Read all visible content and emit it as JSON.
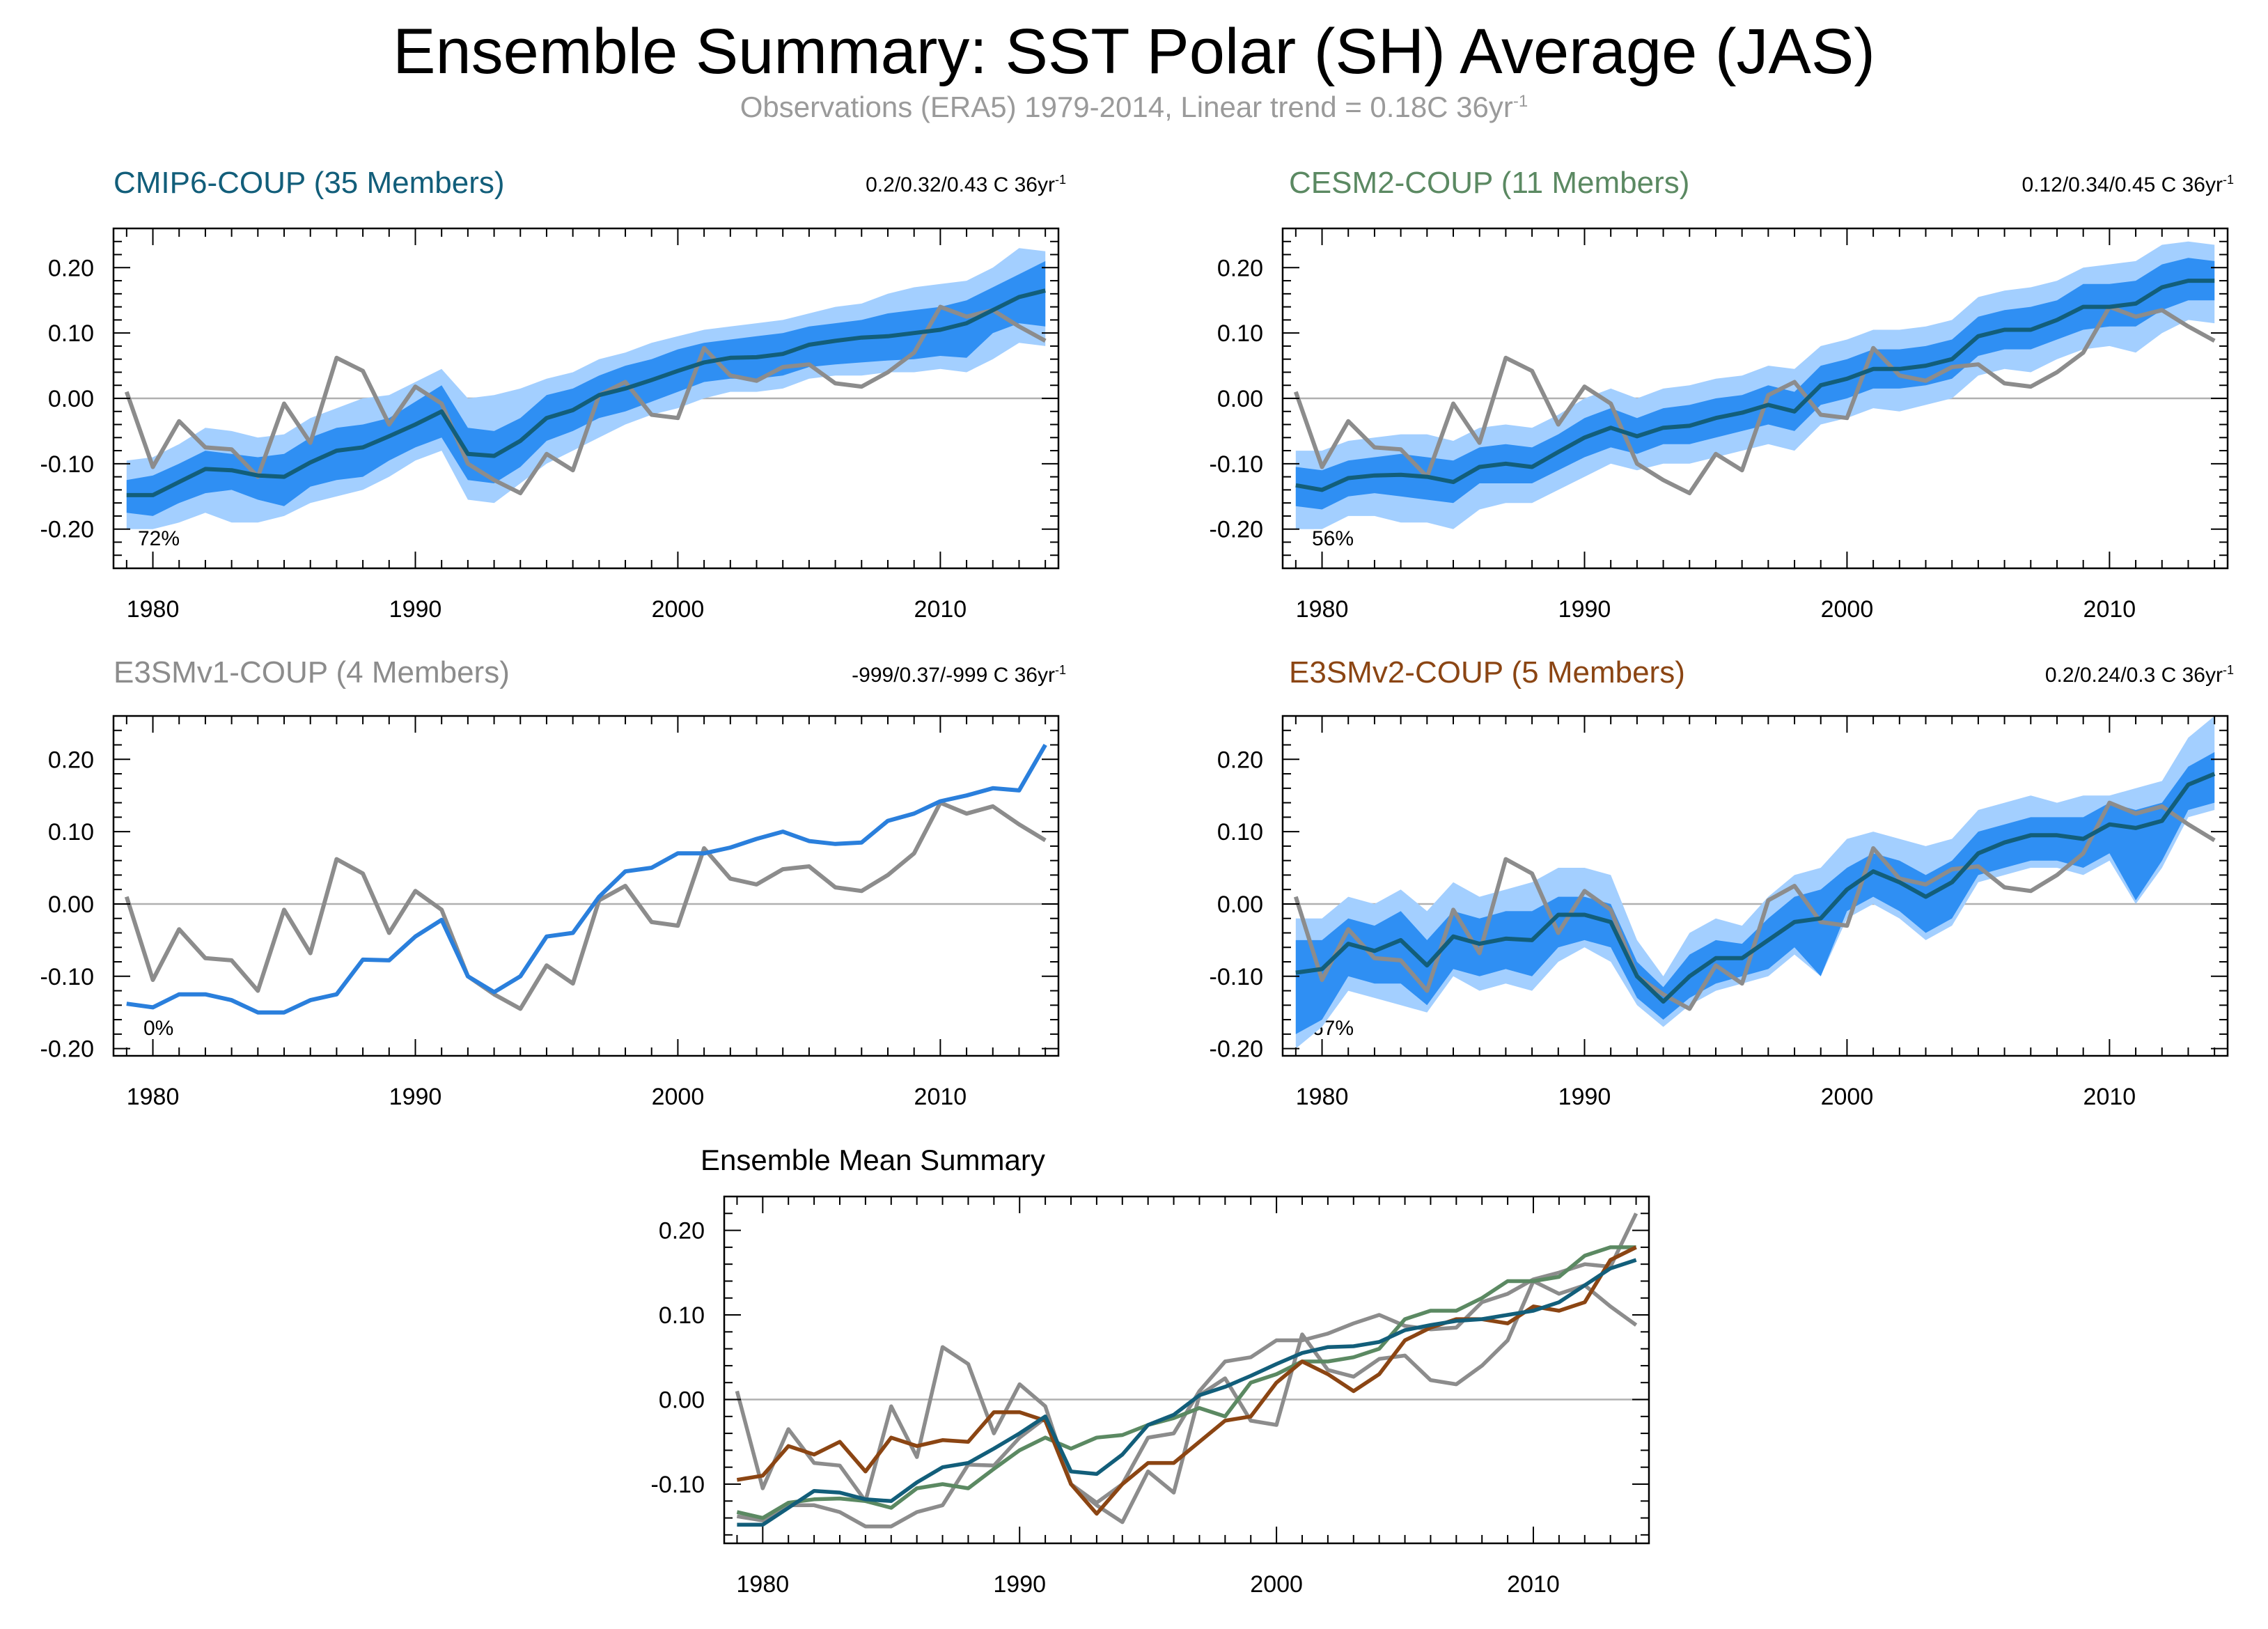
{
  "title": "Ensemble Summary: SST Polar (SH) Average (JAS)",
  "subtitle": {
    "text": "Observations (ERA5) 1979-2014, Linear trend = 0.18C 36yr",
    "sup": "-1"
  },
  "colors": {
    "obs": "#8c8c8c",
    "band_outer": "#a3cfff",
    "band_inner": "#2f8ff3",
    "mean_line": "#2a7fdc",
    "cmip6": "#125e7a",
    "cesm2": "#5b8962",
    "e3smv1": "#8c8c8c",
    "e3smv2": "#8b4513",
    "zero_line": "#b0b0b0"
  },
  "chart_data": [
    {
      "id": "cmip6",
      "type": "area",
      "title": "CMIP6-COUP (35 Members)",
      "trend": "0.2/0.32/0.43 C 36yr",
      "trend_sup": "-1",
      "percent": "72%",
      "x_start": 1979,
      "xticks": [
        "1980",
        "1990",
        "2000",
        "2010"
      ],
      "yticks": [
        "0.20",
        "0.10",
        "0.00",
        "-0.10",
        "-0.20"
      ],
      "ylim": [
        -0.26,
        0.26
      ],
      "xlim": [
        1978.5,
        2014.5
      ],
      "obs": [
        0.01,
        -0.105,
        -0.035,
        -0.075,
        -0.078,
        -0.12,
        -0.008,
        -0.068,
        0.062,
        0.042,
        -0.04,
        0.018,
        -0.008,
        -0.1,
        -0.125,
        -0.145,
        -0.085,
        -0.11,
        0.005,
        0.025,
        -0.025,
        -0.03,
        0.077,
        0.035,
        0.027,
        0.048,
        0.052,
        0.023,
        0.018,
        0.04,
        0.07,
        0.14,
        0.125,
        0.135,
        0.11,
        0.088
      ],
      "mean": [
        -0.148,
        -0.148,
        -0.128,
        -0.108,
        -0.11,
        -0.118,
        -0.12,
        -0.098,
        -0.08,
        -0.075,
        -0.058,
        -0.04,
        -0.02,
        -0.085,
        -0.088,
        -0.065,
        -0.03,
        -0.018,
        0.005,
        0.015,
        0.028,
        0.042,
        0.055,
        0.062,
        0.063,
        0.068,
        0.082,
        0.088,
        0.093,
        0.095,
        0.1,
        0.105,
        0.115,
        0.135,
        0.155,
        0.165
      ],
      "inner_lo": [
        -0.175,
        -0.18,
        -0.16,
        -0.145,
        -0.14,
        -0.155,
        -0.165,
        -0.135,
        -0.125,
        -0.12,
        -0.095,
        -0.075,
        -0.06,
        -0.125,
        -0.13,
        -0.105,
        -0.065,
        -0.05,
        -0.03,
        -0.02,
        -0.005,
        0.01,
        0.025,
        0.03,
        0.03,
        0.035,
        0.048,
        0.052,
        0.055,
        0.058,
        0.06,
        0.065,
        0.062,
        0.1,
        0.115,
        0.11
      ],
      "inner_hi": [
        -0.125,
        -0.118,
        -0.1,
        -0.08,
        -0.085,
        -0.09,
        -0.085,
        -0.06,
        -0.045,
        -0.04,
        -0.03,
        -0.005,
        0.02,
        -0.045,
        -0.05,
        -0.03,
        0.005,
        0.015,
        0.035,
        0.05,
        0.06,
        0.075,
        0.085,
        0.09,
        0.095,
        0.1,
        0.11,
        0.115,
        0.12,
        0.13,
        0.135,
        0.14,
        0.15,
        0.17,
        0.19,
        0.21
      ],
      "outer_lo": [
        -0.2,
        -0.2,
        -0.19,
        -0.175,
        -0.19,
        -0.19,
        -0.18,
        -0.16,
        -0.15,
        -0.14,
        -0.12,
        -0.095,
        -0.08,
        -0.155,
        -0.16,
        -0.13,
        -0.1,
        -0.08,
        -0.06,
        -0.04,
        -0.025,
        -0.015,
        0.0,
        0.01,
        0.01,
        0.015,
        0.03,
        0.035,
        0.035,
        0.04,
        0.04,
        0.045,
        0.04,
        0.06,
        0.085,
        0.08
      ],
      "outer_hi": [
        -0.095,
        -0.09,
        -0.07,
        -0.045,
        -0.05,
        -0.06,
        -0.055,
        -0.03,
        -0.015,
        0.0,
        0.005,
        0.025,
        0.045,
        0.0,
        0.005,
        0.015,
        0.03,
        0.04,
        0.06,
        0.07,
        0.085,
        0.095,
        0.105,
        0.11,
        0.115,
        0.12,
        0.13,
        0.14,
        0.145,
        0.16,
        0.17,
        0.175,
        0.18,
        0.2,
        0.23,
        0.225
      ],
      "mean_color_key": "cmip6",
      "title_color_key": "cmip6"
    },
    {
      "id": "cesm2",
      "type": "area",
      "title": "CESM2-COUP (11 Members)",
      "trend": "0.12/0.34/0.45 C 36yr",
      "trend_sup": "-1",
      "percent": "56%",
      "x_start": 1979,
      "xticks": [
        "1980",
        "1990",
        "2000",
        "2010"
      ],
      "yticks": [
        "0.20",
        "0.10",
        "0.00",
        "-0.10",
        "-0.20"
      ],
      "ylim": [
        -0.26,
        0.26
      ],
      "xlim": [
        1978.5,
        2014.5
      ],
      "obs": [
        0.01,
        -0.105,
        -0.035,
        -0.075,
        -0.078,
        -0.12,
        -0.008,
        -0.068,
        0.062,
        0.042,
        -0.04,
        0.018,
        -0.008,
        -0.1,
        -0.125,
        -0.145,
        -0.085,
        -0.11,
        0.005,
        0.025,
        -0.025,
        -0.03,
        0.077,
        0.035,
        0.027,
        0.048,
        0.052,
        0.023,
        0.018,
        0.04,
        0.07,
        0.14,
        0.125,
        0.135,
        0.11,
        0.088
      ],
      "mean": [
        -0.133,
        -0.14,
        -0.122,
        -0.118,
        -0.117,
        -0.12,
        -0.128,
        -0.105,
        -0.1,
        -0.105,
        -0.082,
        -0.06,
        -0.045,
        -0.058,
        -0.045,
        -0.042,
        -0.03,
        -0.022,
        -0.01,
        -0.02,
        0.02,
        0.03,
        0.045,
        0.045,
        0.05,
        0.06,
        0.095,
        0.105,
        0.105,
        0.12,
        0.14,
        0.14,
        0.145,
        0.17,
        0.18,
        0.18
      ],
      "inner_lo": [
        -0.165,
        -0.17,
        -0.15,
        -0.145,
        -0.15,
        -0.155,
        -0.16,
        -0.13,
        -0.13,
        -0.13,
        -0.11,
        -0.09,
        -0.075,
        -0.085,
        -0.07,
        -0.07,
        -0.06,
        -0.05,
        -0.04,
        -0.05,
        -0.01,
        0.0,
        0.015,
        0.015,
        0.02,
        0.03,
        0.065,
        0.075,
        0.075,
        0.09,
        0.105,
        0.11,
        0.11,
        0.135,
        0.15,
        0.15
      ],
      "inner_hi": [
        -0.105,
        -0.11,
        -0.095,
        -0.09,
        -0.085,
        -0.09,
        -0.095,
        -0.075,
        -0.07,
        -0.075,
        -0.055,
        -0.03,
        -0.015,
        -0.03,
        -0.015,
        -0.01,
        0.0,
        0.005,
        0.02,
        0.01,
        0.05,
        0.06,
        0.075,
        0.075,
        0.08,
        0.09,
        0.125,
        0.135,
        0.14,
        0.15,
        0.175,
        0.175,
        0.18,
        0.205,
        0.215,
        0.21
      ],
      "outer_lo": [
        -0.2,
        -0.2,
        -0.18,
        -0.18,
        -0.19,
        -0.19,
        -0.2,
        -0.17,
        -0.16,
        -0.16,
        -0.14,
        -0.12,
        -0.1,
        -0.11,
        -0.1,
        -0.1,
        -0.09,
        -0.08,
        -0.07,
        -0.08,
        -0.04,
        -0.03,
        -0.015,
        -0.02,
        -0.01,
        0.0,
        0.035,
        0.045,
        0.04,
        0.06,
        0.075,
        0.08,
        0.07,
        0.1,
        0.12,
        0.115
      ],
      "outer_hi": [
        -0.08,
        -0.08,
        -0.065,
        -0.06,
        -0.055,
        -0.055,
        -0.065,
        -0.045,
        -0.04,
        -0.045,
        -0.025,
        0.0,
        0.015,
        0.0,
        0.015,
        0.02,
        0.03,
        0.035,
        0.05,
        0.045,
        0.08,
        0.09,
        0.105,
        0.105,
        0.11,
        0.12,
        0.155,
        0.165,
        0.17,
        0.18,
        0.2,
        0.205,
        0.21,
        0.235,
        0.24,
        0.235
      ],
      "mean_color_key": "cmip6",
      "title_color_key": "cesm2"
    },
    {
      "id": "e3smv1",
      "type": "line",
      "title": "E3SMv1-COUP (4 Members)",
      "trend": "-999/0.37/-999 C 36yr",
      "trend_sup": "-1",
      "percent": "0%",
      "x_start": 1979,
      "xticks": [
        "1980",
        "1990",
        "2000",
        "2010"
      ],
      "yticks": [
        "0.20",
        "0.10",
        "0.00",
        "-0.10",
        "-0.20"
      ],
      "ylim": [
        -0.21,
        0.26
      ],
      "xlim": [
        1978.5,
        2014.5
      ],
      "obs": [
        0.01,
        -0.105,
        -0.035,
        -0.075,
        -0.078,
        -0.12,
        -0.008,
        -0.068,
        0.062,
        0.042,
        -0.04,
        0.018,
        -0.008,
        -0.1,
        -0.125,
        -0.145,
        -0.085,
        -0.11,
        0.005,
        0.025,
        -0.025,
        -0.03,
        0.077,
        0.035,
        0.027,
        0.048,
        0.052,
        0.023,
        0.018,
        0.04,
        0.07,
        0.14,
        0.125,
        0.135,
        0.11,
        0.088
      ],
      "mean": [
        -0.138,
        -0.143,
        -0.125,
        -0.125,
        -0.133,
        -0.15,
        -0.15,
        -0.133,
        -0.125,
        -0.077,
        -0.078,
        -0.045,
        -0.022,
        -0.1,
        -0.122,
        -0.1,
        -0.045,
        -0.04,
        0.01,
        0.045,
        0.05,
        0.07,
        0.07,
        0.078,
        0.09,
        0.1,
        0.087,
        0.083,
        0.085,
        0.115,
        0.125,
        0.142,
        0.15,
        0.16,
        0.157,
        0.22
      ],
      "mean_color_key": "mean_line",
      "title_color_key": "e3smv1"
    },
    {
      "id": "e3smv2",
      "type": "area",
      "title": "E3SMv2-COUP (5 Members)",
      "trend": "0.2/0.24/0.3 C 36yr",
      "trend_sup": "-1",
      "percent": "67%",
      "x_start": 1979,
      "xticks": [
        "1980",
        "1990",
        "2000",
        "2010"
      ],
      "yticks": [
        "0.20",
        "0.10",
        "0.00",
        "-0.10",
        "-0.20"
      ],
      "ylim": [
        -0.21,
        0.26
      ],
      "xlim": [
        1978.5,
        2014.5
      ],
      "obs": [
        0.01,
        -0.105,
        -0.035,
        -0.075,
        -0.078,
        -0.12,
        -0.008,
        -0.068,
        0.062,
        0.042,
        -0.04,
        0.018,
        -0.008,
        -0.1,
        -0.125,
        -0.145,
        -0.085,
        -0.11,
        0.005,
        0.025,
        -0.025,
        -0.03,
        0.077,
        0.035,
        0.027,
        0.048,
        0.052,
        0.023,
        0.018,
        0.04,
        0.07,
        0.14,
        0.125,
        0.135,
        0.11,
        0.088
      ],
      "mean": [
        -0.095,
        -0.09,
        -0.055,
        -0.065,
        -0.05,
        -0.085,
        -0.045,
        -0.055,
        -0.048,
        -0.05,
        -0.015,
        -0.015,
        -0.025,
        -0.1,
        -0.135,
        -0.1,
        -0.075,
        -0.075,
        -0.05,
        -0.025,
        -0.02,
        0.02,
        0.045,
        0.03,
        0.01,
        0.03,
        0.07,
        0.085,
        0.095,
        0.095,
        0.09,
        0.11,
        0.105,
        0.115,
        0.165,
        0.18
      ],
      "inner_lo": [
        -0.18,
        -0.16,
        -0.1,
        -0.11,
        -0.11,
        -0.14,
        -0.09,
        -0.1,
        -0.09,
        -0.1,
        -0.06,
        -0.05,
        -0.06,
        -0.13,
        -0.16,
        -0.13,
        -0.11,
        -0.1,
        -0.09,
        -0.06,
        -0.1,
        -0.01,
        0.01,
        -0.01,
        -0.04,
        -0.02,
        0.04,
        0.05,
        0.06,
        0.06,
        0.05,
        0.07,
        0.005,
        0.06,
        0.13,
        0.14
      ],
      "inner_hi": [
        -0.05,
        -0.05,
        -0.02,
        -0.03,
        -0.01,
        -0.05,
        -0.01,
        -0.02,
        -0.01,
        -0.01,
        0.01,
        0.01,
        0.0,
        -0.08,
        -0.115,
        -0.07,
        -0.05,
        -0.055,
        -0.02,
        0.01,
        0.02,
        0.05,
        0.07,
        0.06,
        0.04,
        0.06,
        0.1,
        0.11,
        0.12,
        0.12,
        0.12,
        0.14,
        0.13,
        0.14,
        0.19,
        0.21
      ],
      "outer_lo": [
        -0.2,
        -0.17,
        -0.12,
        -0.13,
        -0.14,
        -0.15,
        -0.1,
        -0.12,
        -0.11,
        -0.12,
        -0.08,
        -0.06,
        -0.08,
        -0.14,
        -0.17,
        -0.14,
        -0.12,
        -0.11,
        -0.1,
        -0.07,
        -0.1,
        -0.02,
        0.0,
        -0.02,
        -0.05,
        -0.03,
        0.03,
        0.04,
        0.05,
        0.05,
        0.04,
        0.06,
        0.0,
        0.05,
        0.12,
        0.13
      ],
      "outer_hi": [
        -0.02,
        -0.02,
        0.01,
        0.0,
        0.02,
        -0.01,
        0.03,
        0.01,
        0.02,
        0.03,
        0.05,
        0.05,
        0.04,
        -0.05,
        -0.1,
        -0.04,
        -0.02,
        -0.03,
        0.01,
        0.04,
        0.05,
        0.09,
        0.1,
        0.09,
        0.08,
        0.09,
        0.13,
        0.14,
        0.15,
        0.14,
        0.15,
        0.15,
        0.16,
        0.17,
        0.23,
        0.26
      ],
      "mean_color_key": "cmip6",
      "title_color_key": "e3smv2"
    },
    {
      "id": "summary",
      "type": "line",
      "title": "Ensemble Mean Summary",
      "x_start": 1979,
      "xticks": [
        "1980",
        "1990",
        "2000",
        "2010"
      ],
      "yticks": [
        "0.20",
        "0.10",
        "0.00",
        "-0.10"
      ],
      "ylim": [
        -0.17,
        0.24
      ],
      "xlim": [
        1978.5,
        2014.5
      ],
      "series": [
        {
          "color_key": "obs",
          "values": [
            0.01,
            -0.105,
            -0.035,
            -0.075,
            -0.078,
            -0.12,
            -0.008,
            -0.068,
            0.062,
            0.042,
            -0.04,
            0.018,
            -0.008,
            -0.1,
            -0.125,
            -0.145,
            -0.085,
            -0.11,
            0.005,
            0.025,
            -0.025,
            -0.03,
            0.077,
            0.035,
            0.027,
            0.048,
            0.052,
            0.023,
            0.018,
            0.04,
            0.07,
            0.14,
            0.125,
            0.135,
            0.11,
            0.088
          ]
        },
        {
          "color_key": "e3smv1",
          "values": [
            -0.138,
            -0.143,
            -0.125,
            -0.125,
            -0.133,
            -0.15,
            -0.15,
            -0.133,
            -0.125,
            -0.077,
            -0.078,
            -0.045,
            -0.022,
            -0.1,
            -0.122,
            -0.1,
            -0.045,
            -0.04,
            0.01,
            0.045,
            0.05,
            0.07,
            0.07,
            0.078,
            0.09,
            0.1,
            0.087,
            0.083,
            0.085,
            0.115,
            0.125,
            0.142,
            0.15,
            0.16,
            0.157,
            0.22
          ]
        },
        {
          "color_key": "cesm2",
          "values": [
            -0.133,
            -0.14,
            -0.122,
            -0.118,
            -0.117,
            -0.12,
            -0.128,
            -0.105,
            -0.1,
            -0.105,
            -0.082,
            -0.06,
            -0.045,
            -0.058,
            -0.045,
            -0.042,
            -0.03,
            -0.022,
            -0.01,
            -0.02,
            0.02,
            0.03,
            0.045,
            0.045,
            0.05,
            0.06,
            0.095,
            0.105,
            0.105,
            0.12,
            0.14,
            0.14,
            0.145,
            0.17,
            0.18,
            0.18
          ]
        },
        {
          "color_key": "e3smv2",
          "values": [
            -0.095,
            -0.09,
            -0.055,
            -0.065,
            -0.05,
            -0.085,
            -0.045,
            -0.055,
            -0.048,
            -0.05,
            -0.015,
            -0.015,
            -0.025,
            -0.1,
            -0.135,
            -0.1,
            -0.075,
            -0.075,
            -0.05,
            -0.025,
            -0.02,
            0.02,
            0.045,
            0.03,
            0.01,
            0.03,
            0.07,
            0.085,
            0.095,
            0.095,
            0.09,
            0.11,
            0.105,
            0.115,
            0.165,
            0.18
          ]
        },
        {
          "color_key": "cmip6",
          "values": [
            -0.148,
            -0.148,
            -0.128,
            -0.108,
            -0.11,
            -0.118,
            -0.12,
            -0.098,
            -0.08,
            -0.075,
            -0.058,
            -0.04,
            -0.02,
            -0.085,
            -0.088,
            -0.065,
            -0.03,
            -0.018,
            0.005,
            0.015,
            0.028,
            0.042,
            0.055,
            0.062,
            0.063,
            0.068,
            0.082,
            0.088,
            0.093,
            0.095,
            0.1,
            0.105,
            0.115,
            0.135,
            0.155,
            0.165
          ]
        }
      ]
    }
  ]
}
